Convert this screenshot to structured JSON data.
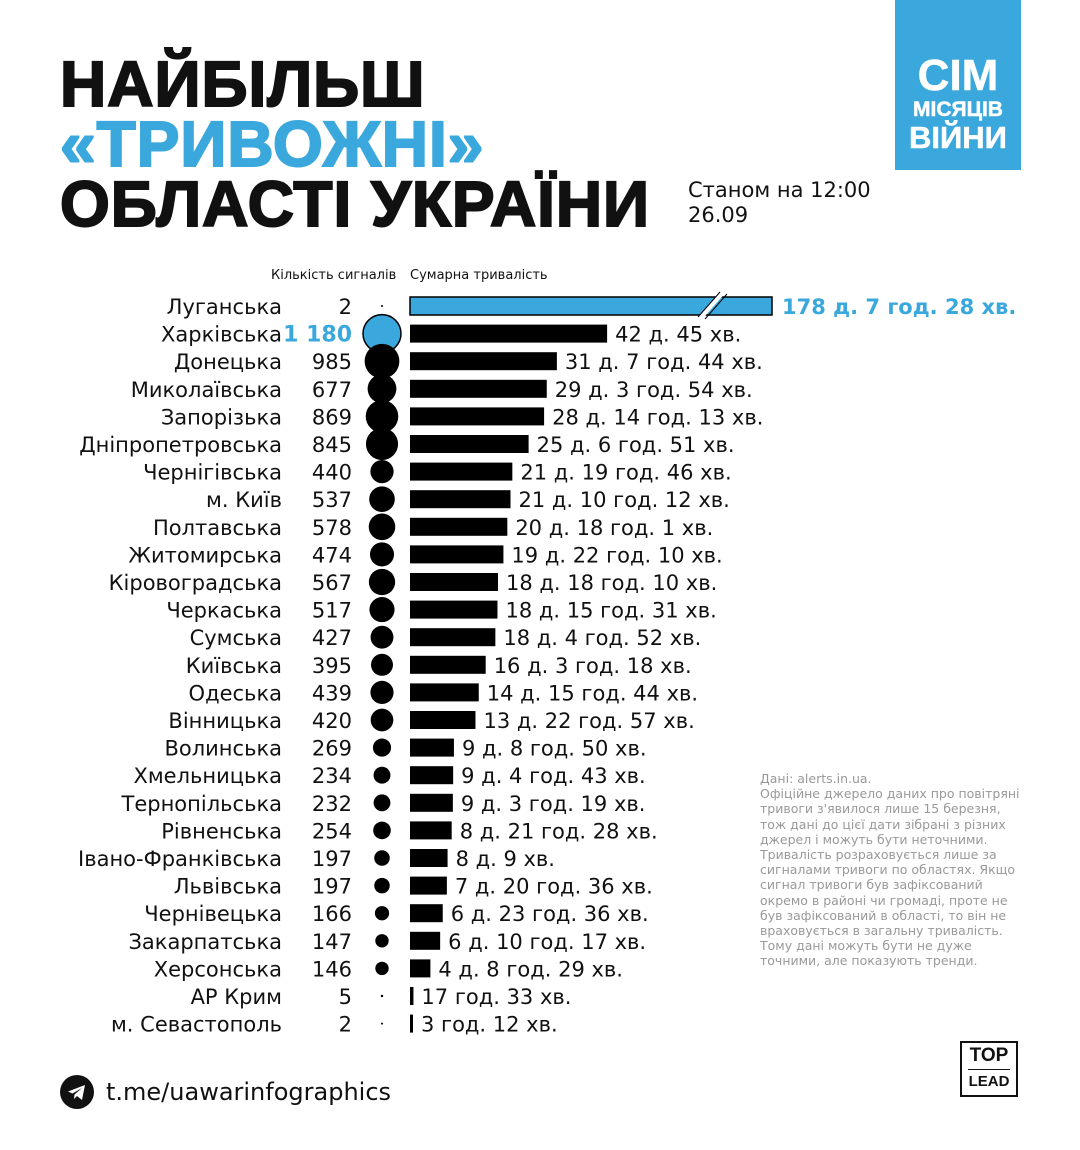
{
  "title": {
    "line1": "НАЙБІЛЬШ",
    "line2": "«ТРИВОЖНІ»",
    "line3": "ОБЛАСТІ УКРАЇНИ"
  },
  "badge": {
    "line1": "СІМ",
    "line2": "МІСЯЦІВ",
    "line3": "ВІЙНИ"
  },
  "as_of": {
    "line1": "Станом на 12:00",
    "line2": "26.09"
  },
  "colors": {
    "accent": "#3aa8dc",
    "bar": "#000000"
  },
  "chart_data": {
    "type": "bar",
    "title": "Найбільш «тривожні» області України",
    "columns": {
      "count": "Кількість сигналів",
      "duration": "Сумарна тривалість"
    },
    "highlight_duration": "Луганська",
    "highlight_count": "Харківська",
    "rows": [
      {
        "region": "Луганська",
        "count": 2,
        "count_label": "2",
        "duration_days": 178.31,
        "duration_label": "178 д. 7 год. 28 хв.",
        "truncated": true
      },
      {
        "region": "Харківська",
        "count": 1180,
        "count_label": "1 180",
        "duration_days": 42.03,
        "duration_label": "42 д. 45 хв."
      },
      {
        "region": "Донецька",
        "count": 985,
        "count_label": "985",
        "duration_days": 31.32,
        "duration_label": "31 д. 7 год. 44 хв."
      },
      {
        "region": "Миколаївська",
        "count": 677,
        "count_label": "677",
        "duration_days": 29.16,
        "duration_label": "29 д. 3 год. 54 хв."
      },
      {
        "region": "Запорізька",
        "count": 869,
        "count_label": "869",
        "duration_days": 28.59,
        "duration_label": "28 д. 14 год. 13 хв."
      },
      {
        "region": "Дніпропетровська",
        "count": 845,
        "count_label": "845",
        "duration_days": 25.29,
        "duration_label": "25 д. 6 год. 51 хв."
      },
      {
        "region": "Чернігівська",
        "count": 440,
        "count_label": "440",
        "duration_days": 21.82,
        "duration_label": "21 д. 19 год. 46 хв."
      },
      {
        "region": "м. Київ",
        "count": 537,
        "count_label": "537",
        "duration_days": 21.43,
        "duration_label": "21 д. 10 год. 12 хв."
      },
      {
        "region": "Полтавська",
        "count": 578,
        "count_label": "578",
        "duration_days": 20.75,
        "duration_label": "20 д. 18 год. 1 хв."
      },
      {
        "region": "Житомирська",
        "count": 474,
        "count_label": "474",
        "duration_days": 19.92,
        "duration_label": "19 д. 22 год. 10 хв."
      },
      {
        "region": "Кіровоградська",
        "count": 567,
        "count_label": "567",
        "duration_days": 18.76,
        "duration_label": "18 д. 18 год. 10 хв."
      },
      {
        "region": "Черкаська",
        "count": 517,
        "count_label": "517",
        "duration_days": 18.65,
        "duration_label": "18 д. 15 год. 31 хв."
      },
      {
        "region": "Сумська",
        "count": 427,
        "count_label": "427",
        "duration_days": 18.2,
        "duration_label": "18 д. 4 год. 52 хв."
      },
      {
        "region": "Київська",
        "count": 395,
        "count_label": "395",
        "duration_days": 16.14,
        "duration_label": "16 д. 3 год. 18 хв."
      },
      {
        "region": "Одеська",
        "count": 439,
        "count_label": "439",
        "duration_days": 14.66,
        "duration_label": "14 д. 15 год. 44 хв."
      },
      {
        "region": "Вінницька",
        "count": 420,
        "count_label": "420",
        "duration_days": 13.96,
        "duration_label": "13 д. 22 год. 57 хв."
      },
      {
        "region": "Волинська",
        "count": 269,
        "count_label": "269",
        "duration_days": 9.37,
        "duration_label": "9 д. 8 год. 50 хв."
      },
      {
        "region": "Хмельницька",
        "count": 234,
        "count_label": "234",
        "duration_days": 9.2,
        "duration_label": "9 д. 4 год. 43 хв."
      },
      {
        "region": "Тернопільська",
        "count": 232,
        "count_label": "232",
        "duration_days": 9.14,
        "duration_label": "9 д. 3 год. 19 хв."
      },
      {
        "region": "Рівненська",
        "count": 254,
        "count_label": "254",
        "duration_days": 8.89,
        "duration_label": "8 д. 21 год. 28 хв."
      },
      {
        "region": "Івано-Франківська",
        "count": 197,
        "count_label": "197",
        "duration_days": 8.01,
        "duration_label": "8 д. 9 хв."
      },
      {
        "region": "Львівська",
        "count": 197,
        "count_label": "197",
        "duration_days": 7.86,
        "duration_label": "7 д. 20 год. 36 хв."
      },
      {
        "region": "Чернівецька",
        "count": 166,
        "count_label": "166",
        "duration_days": 6.98,
        "duration_label": "6 д. 23 год. 36 хв."
      },
      {
        "region": "Закарпатська",
        "count": 147,
        "count_label": "147",
        "duration_days": 6.43,
        "duration_label": "6 д. 10 год. 17 хв."
      },
      {
        "region": "Херсонська",
        "count": 146,
        "count_label": "146",
        "duration_days": 4.35,
        "duration_label": "4 д. 8 год. 29 хв."
      },
      {
        "region": "АР Крим",
        "count": 5,
        "count_label": "5",
        "duration_days": 0.73,
        "duration_label": "17 год. 33 хв."
      },
      {
        "region": "м. Севастополь",
        "count": 2,
        "count_label": "2",
        "duration_days": 0.13,
        "duration_label": "3 год. 12 хв."
      }
    ]
  },
  "notes": [
    "Дані: alerts.in.ua.",
    "Офіційне джерело даних про повітряні тривоги з'явилося лише 15 березня, тож дані до цієї дати зібрані з різних джерел і можуть бути неточними.",
    "Тривалість розраховується лише за сигналами тривоги по областях. Якщо сигнал тривоги був зафіксований окремо в районі чи громаді, проте не був зафіксований в області, то він не враховується в загальну тривалість. Тому дані можуть бути не дуже точними, але показують тренди."
  ],
  "footer": {
    "telegram": "t.me/uawarinfographics",
    "logo_top": "TOP",
    "logo_bottom": "LEAD"
  }
}
